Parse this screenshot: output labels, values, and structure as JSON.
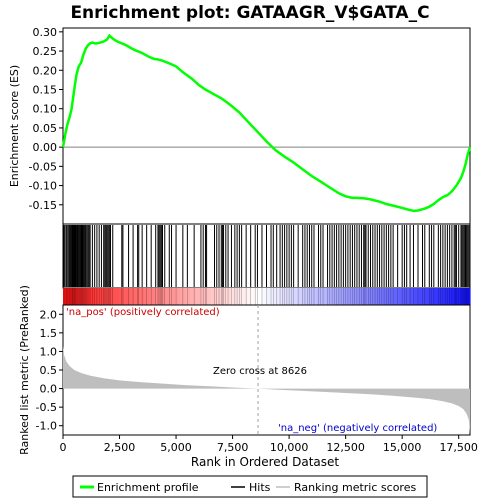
{
  "chart_data": {
    "type": "line",
    "title": "Enrichment plot: GATAAGR_V$GATA_C",
    "colors": {
      "enrichment_line": "#00ff00",
      "hits": "#000000",
      "metric_fill": "#bebebe",
      "frame": "#000000",
      "zero_line": "#808080",
      "pos_label": "#cc0000",
      "neg_label": "#0000cc"
    },
    "panel_top": {
      "ylabel": "Enrichment score (ES)",
      "ylim": [
        -0.2,
        0.31
      ],
      "yticks": [
        -0.15,
        -0.1,
        -0.05,
        0.0,
        0.05,
        0.1,
        0.15,
        0.2,
        0.25,
        0.3
      ],
      "ytick_labels": [
        "-0.15",
        "-0.10",
        "-0.05",
        "0.00",
        "0.05",
        "0.10",
        "0.15",
        "0.20",
        "0.25",
        "0.30"
      ],
      "series": [
        {
          "name": "Enrichment profile",
          "x": [
            0,
            60,
            120,
            200,
            300,
            380,
            450,
            520,
            600,
            700,
            800,
            900,
            1000,
            1100,
            1200,
            1300,
            1400,
            1500,
            1650,
            1800,
            1950,
            2050,
            2150,
            2250,
            2400,
            2600,
            2800,
            3000,
            3200,
            3500,
            3800,
            4000,
            4200,
            4400,
            4700,
            5000,
            5300,
            5700,
            6000,
            6300,
            6600,
            7000,
            7400,
            7800,
            8200,
            8600,
            9000,
            9400,
            9800,
            10200,
            10600,
            11000,
            11400,
            11800,
            12200,
            12500,
            12800,
            13000,
            13300,
            13600,
            14000,
            14300,
            14600,
            15000,
            15300,
            15500,
            15700,
            16000,
            16200,
            16400,
            16600,
            16800,
            17000,
            17200,
            17400,
            17600,
            17700,
            17800,
            17900,
            18000
          ],
          "y": [
            0.0,
            0.02,
            0.04,
            0.06,
            0.08,
            0.1,
            0.13,
            0.16,
            0.19,
            0.21,
            0.22,
            0.24,
            0.255,
            0.265,
            0.27,
            0.272,
            0.27,
            0.27,
            0.272,
            0.275,
            0.28,
            0.29,
            0.285,
            0.28,
            0.275,
            0.27,
            0.265,
            0.258,
            0.252,
            0.245,
            0.235,
            0.23,
            0.228,
            0.225,
            0.218,
            0.21,
            0.195,
            0.178,
            0.162,
            0.15,
            0.14,
            0.127,
            0.11,
            0.09,
            0.065,
            0.04,
            0.015,
            -0.008,
            -0.025,
            -0.04,
            -0.058,
            -0.075,
            -0.09,
            -0.105,
            -0.12,
            -0.128,
            -0.132,
            -0.132,
            -0.133,
            -0.136,
            -0.142,
            -0.148,
            -0.152,
            -0.158,
            -0.163,
            -0.166,
            -0.165,
            -0.16,
            -0.155,
            -0.148,
            -0.138,
            -0.13,
            -0.125,
            -0.115,
            -0.1,
            -0.08,
            -0.065,
            -0.045,
            -0.02,
            0.0
          ]
        }
      ]
    },
    "panel_hits": {
      "hit_positions": [
        40,
        90,
        150,
        210,
        260,
        300,
        340,
        380,
        410,
        440,
        470,
        500,
        530,
        560,
        600,
        640,
        680,
        720,
        760,
        800,
        840,
        880,
        920,
        960,
        1000,
        1050,
        1100,
        1150,
        1200,
        1300,
        1400,
        1500,
        1600,
        1700,
        1800,
        1850,
        1900,
        1950,
        2000,
        2050,
        2100,
        2200,
        2600,
        2650,
        2900,
        3100,
        3300,
        3350,
        3500,
        3700,
        3900,
        4100,
        4200,
        4250,
        4300,
        4350,
        4400,
        4500,
        4700,
        4800,
        5000,
        5300,
        5500,
        5800,
        6100,
        6200,
        6300,
        6350,
        6700,
        6800,
        6900,
        7000,
        7050,
        7100,
        7200,
        7300,
        7450,
        7600,
        7700,
        7800,
        7900,
        8100,
        8300,
        8500,
        8600,
        8800,
        9000,
        9200,
        9300,
        9450,
        9600,
        9700,
        9800,
        9900,
        10000,
        10100,
        10200,
        10400,
        10600,
        10700,
        10800,
        10900,
        11000,
        11100,
        11300,
        11400,
        11500,
        11700,
        11800,
        11900,
        12000,
        12100,
        12200,
        12300,
        12400,
        12500,
        12600,
        12700,
        12800,
        12900,
        13000,
        13100,
        13200,
        13300,
        13350,
        13400,
        13500,
        13600,
        13700,
        13800,
        13900,
        14000,
        14100,
        14200,
        14300,
        14400,
        14500,
        14600,
        14800,
        15000,
        15100,
        15200,
        15350,
        15500,
        15700,
        15900,
        16000,
        16200,
        16300,
        16400,
        16600,
        16700,
        16800,
        16900,
        17000,
        17100,
        17200,
        17300,
        17350,
        17400,
        17500,
        17600,
        17650,
        17700,
        17750,
        17800,
        17850,
        17900,
        17950
      ]
    },
    "panel_metric": {
      "ylabel": "Ranked list metric (PreRanked)",
      "ylim": [
        -1.25,
        2.25
      ],
      "yticks": [
        -1.0,
        -0.5,
        0.0,
        0.5,
        1.0,
        1.5,
        2.0
      ],
      "ytick_labels": [
        "-1.0",
        "-0.5",
        "0.0",
        "0.5",
        "1.0",
        "1.5",
        "2.0"
      ],
      "x": [
        0,
        50,
        150,
        300,
        500,
        800,
        1200,
        1800,
        2500,
        3500,
        4500,
        5500,
        6500,
        7500,
        8626,
        9500,
        10500,
        11500,
        12500,
        13500,
        14500,
        15500,
        16200,
        16800,
        17200,
        17500,
        17700,
        17850,
        17950,
        18000
      ],
      "values": [
        1.15,
        0.9,
        0.72,
        0.6,
        0.5,
        0.42,
        0.35,
        0.28,
        0.22,
        0.17,
        0.13,
        0.09,
        0.06,
        0.03,
        0.0,
        -0.03,
        -0.06,
        -0.09,
        -0.12,
        -0.15,
        -0.19,
        -0.24,
        -0.28,
        -0.34,
        -0.4,
        -0.47,
        -0.55,
        -0.68,
        -0.85,
        -1.2
      ],
      "pos_label": "'na_pos' (positively correlated)",
      "neg_label": "'na_neg' (negatively correlated)",
      "zero_cross_label": "Zero cross at 8626",
      "zero_cross": 8626
    },
    "xaxis": {
      "xlabel": "Rank in Ordered Dataset",
      "xlim": [
        0,
        18000
      ],
      "xticks": [
        0,
        2500,
        5000,
        7500,
        10000,
        12500,
        15000,
        17500
      ],
      "xtick_labels": [
        "0",
        "2,500",
        "5,000",
        "7,500",
        "10,000",
        "12,500",
        "15,000",
        "17,500"
      ]
    },
    "legend": {
      "placement": "bottom",
      "entries": [
        {
          "label": "Enrichment profile",
          "style": "green-line"
        },
        {
          "label": "Hits",
          "style": "black-line"
        },
        {
          "label": "Ranking metric scores",
          "style": "gray-line"
        }
      ]
    }
  }
}
